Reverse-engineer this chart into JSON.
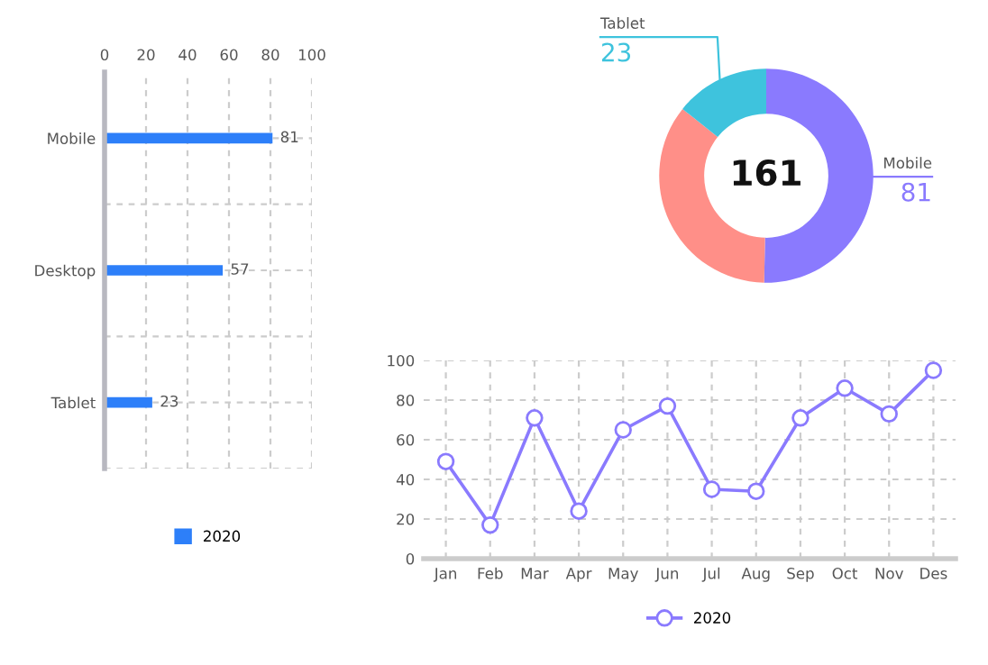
{
  "chart_data": [
    {
      "type": "bar",
      "orientation": "horizontal",
      "categories": [
        "Mobile",
        "Desktop",
        "Tablet"
      ],
      "series": [
        {
          "name": "2020",
          "color": "#2d7ff9",
          "values": [
            81,
            57,
            23
          ]
        }
      ],
      "xlim": [
        0,
        100
      ],
      "xticks": [
        0,
        20,
        40,
        60,
        80,
        100
      ],
      "data_labels": true,
      "grid": true,
      "legend": "bottom"
    },
    {
      "type": "donut",
      "categories": [
        "Mobile",
        null,
        "Tablet"
      ],
      "values": [
        81,
        57,
        23
      ],
      "value_labels": [
        "81",
        null,
        "23"
      ],
      "colors": [
        "#8a7afe",
        "#ff8f88",
        "#3ec3dd"
      ],
      "annotations": [
        "161"
      ]
    },
    {
      "type": "line",
      "categories": [
        "Jan",
        "Feb",
        "Mar",
        "Apr",
        "May",
        "Jun",
        "Jul",
        "Aug",
        "Sep",
        "Oct",
        "Nov",
        "Des"
      ],
      "series": [
        {
          "name": "2020",
          "color": "#8a7afe",
          "values": [
            49,
            17,
            71,
            24,
            65,
            77,
            35,
            34,
            71,
            86,
            73,
            95
          ]
        }
      ],
      "ylim": [
        0,
        100
      ],
      "yticks": [
        0,
        20,
        40,
        60,
        80,
        100
      ],
      "grid": true,
      "marker": "circle",
      "line_style": "solid",
      "legend": "bottom"
    }
  ]
}
